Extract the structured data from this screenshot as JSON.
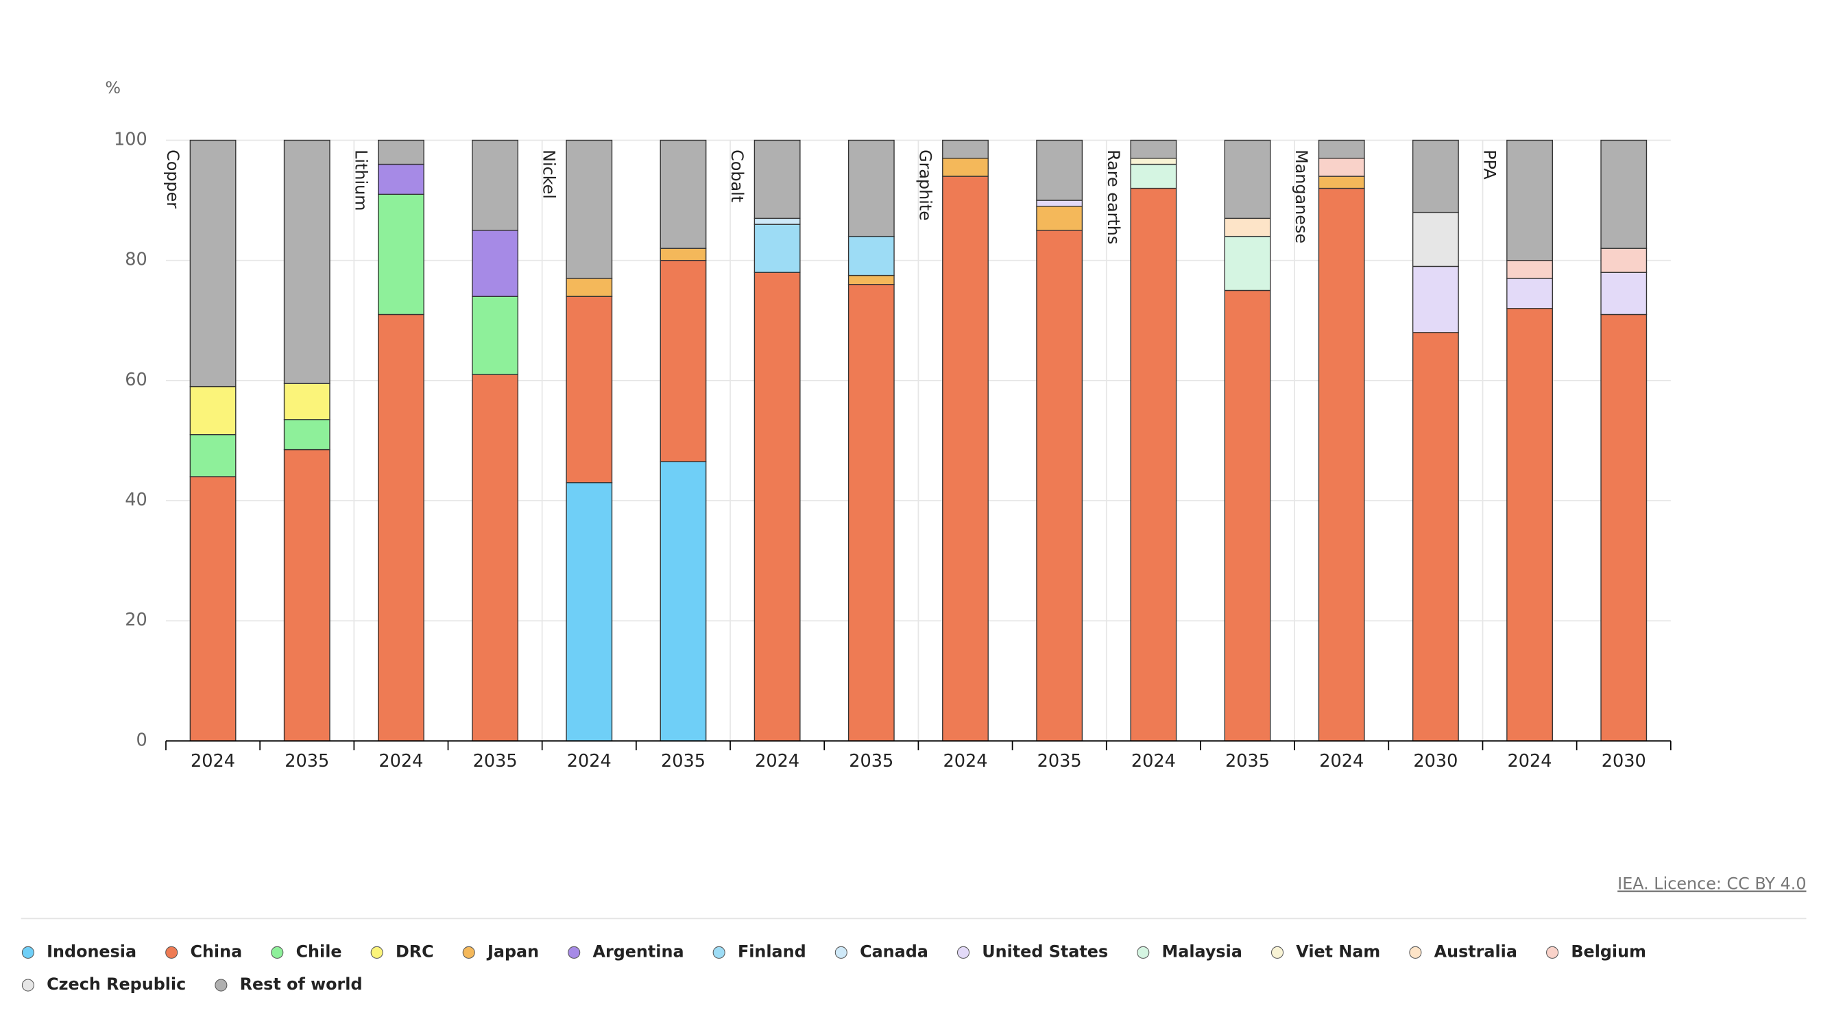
{
  "chart_data": {
    "type": "stacked-bar",
    "y_label": "%",
    "source": "IEA. Licence: CC BY 4.0",
    "categories": [
      "2024",
      "2035",
      "2024",
      "2035",
      "2024",
      "2035",
      "2024",
      "2035",
      "2024",
      "2035",
      "2024",
      "2035",
      "2024",
      "2030",
      "2024",
      "2030"
    ],
    "groups": [
      "Copper",
      "Lithium",
      "Nickel",
      "Cobalt",
      "Graphite",
      "Rare earths",
      "Manganese",
      "PPA"
    ],
    "ylim": [
      0,
      100
    ],
    "yticks": [
      0,
      20,
      40,
      60,
      80,
      100
    ],
    "grid": true,
    "series": [
      {
        "name": "Indonesia",
        "color": "#6fcff7",
        "values": [
          0,
          0,
          0,
          0,
          43,
          46.5,
          0,
          0,
          0,
          0,
          0,
          0,
          0,
          0,
          0,
          0
        ]
      },
      {
        "name": "China",
        "color": "#ee7b54",
        "values": [
          44,
          48.5,
          71,
          61,
          31,
          33.5,
          78,
          76,
          94,
          85,
          92,
          75,
          92,
          68,
          72,
          71
        ]
      },
      {
        "name": "Chile",
        "color": "#8ef09a",
        "values": [
          7,
          5,
          20,
          13,
          0,
          0,
          0,
          0,
          0,
          0,
          0,
          0,
          0,
          0,
          0,
          0
        ]
      },
      {
        "name": "DRC",
        "color": "#fbf47a",
        "values": [
          8,
          6,
          0,
          0,
          0,
          0,
          0,
          0,
          0,
          0,
          0,
          0,
          0,
          0,
          0,
          0
        ]
      },
      {
        "name": "Japan",
        "color": "#f4b85a",
        "values": [
          0,
          0,
          0,
          0,
          3,
          2,
          0,
          1.5,
          3,
          4,
          0,
          0,
          2,
          0,
          0,
          0
        ]
      },
      {
        "name": "Argentina",
        "color": "#a68ae6",
        "values": [
          0,
          0,
          5,
          11,
          0,
          0,
          0,
          0,
          0,
          0,
          0,
          0,
          0,
          0,
          0,
          0
        ]
      },
      {
        "name": "Finland",
        "color": "#9ddcf5",
        "values": [
          0,
          0,
          0,
          0,
          0,
          0,
          8,
          6.5,
          0,
          0,
          0,
          0,
          0,
          0,
          0,
          0
        ]
      },
      {
        "name": "Canada",
        "color": "#cfe9f8",
        "values": [
          0,
          0,
          0,
          0,
          0,
          0,
          1,
          0,
          0,
          0,
          0,
          0,
          0,
          0,
          0,
          0
        ]
      },
      {
        "name": "United States",
        "color": "#e3daf8",
        "values": [
          0,
          0,
          0,
          0,
          0,
          0,
          0,
          0,
          0,
          1,
          0,
          0,
          0,
          11,
          5,
          7
        ]
      },
      {
        "name": "Malaysia",
        "color": "#d5f5e2",
        "values": [
          0,
          0,
          0,
          0,
          0,
          0,
          0,
          0,
          0,
          0,
          4,
          9,
          0,
          0,
          0,
          0
        ]
      },
      {
        "name": "Viet Nam",
        "color": "#f8f3d5",
        "values": [
          0,
          0,
          0,
          0,
          0,
          0,
          0,
          0,
          0,
          0,
          1,
          0,
          0,
          0,
          0,
          0
        ]
      },
      {
        "name": "Australia",
        "color": "#fde4c8",
        "values": [
          0,
          0,
          0,
          0,
          0,
          0,
          0,
          0,
          0,
          0,
          0,
          3,
          0,
          0,
          0,
          0
        ]
      },
      {
        "name": "Belgium",
        "color": "#f9d2c9",
        "values": [
          0,
          0,
          0,
          0,
          0,
          0,
          0,
          0,
          0,
          0,
          0,
          0,
          3,
          0,
          3,
          4
        ]
      },
      {
        "name": "Czech Republic",
        "color": "#e6e6e6",
        "values": [
          0,
          0,
          0,
          0,
          0,
          0,
          0,
          0,
          0,
          0,
          0,
          0,
          0,
          9,
          0,
          0
        ]
      },
      {
        "name": "Rest of world",
        "color": "#b0b0b0",
        "values": [
          41,
          40.5,
          4,
          15,
          23,
          18,
          13,
          16,
          3,
          10,
          3,
          13,
          3,
          12,
          20,
          18
        ]
      }
    ]
  }
}
